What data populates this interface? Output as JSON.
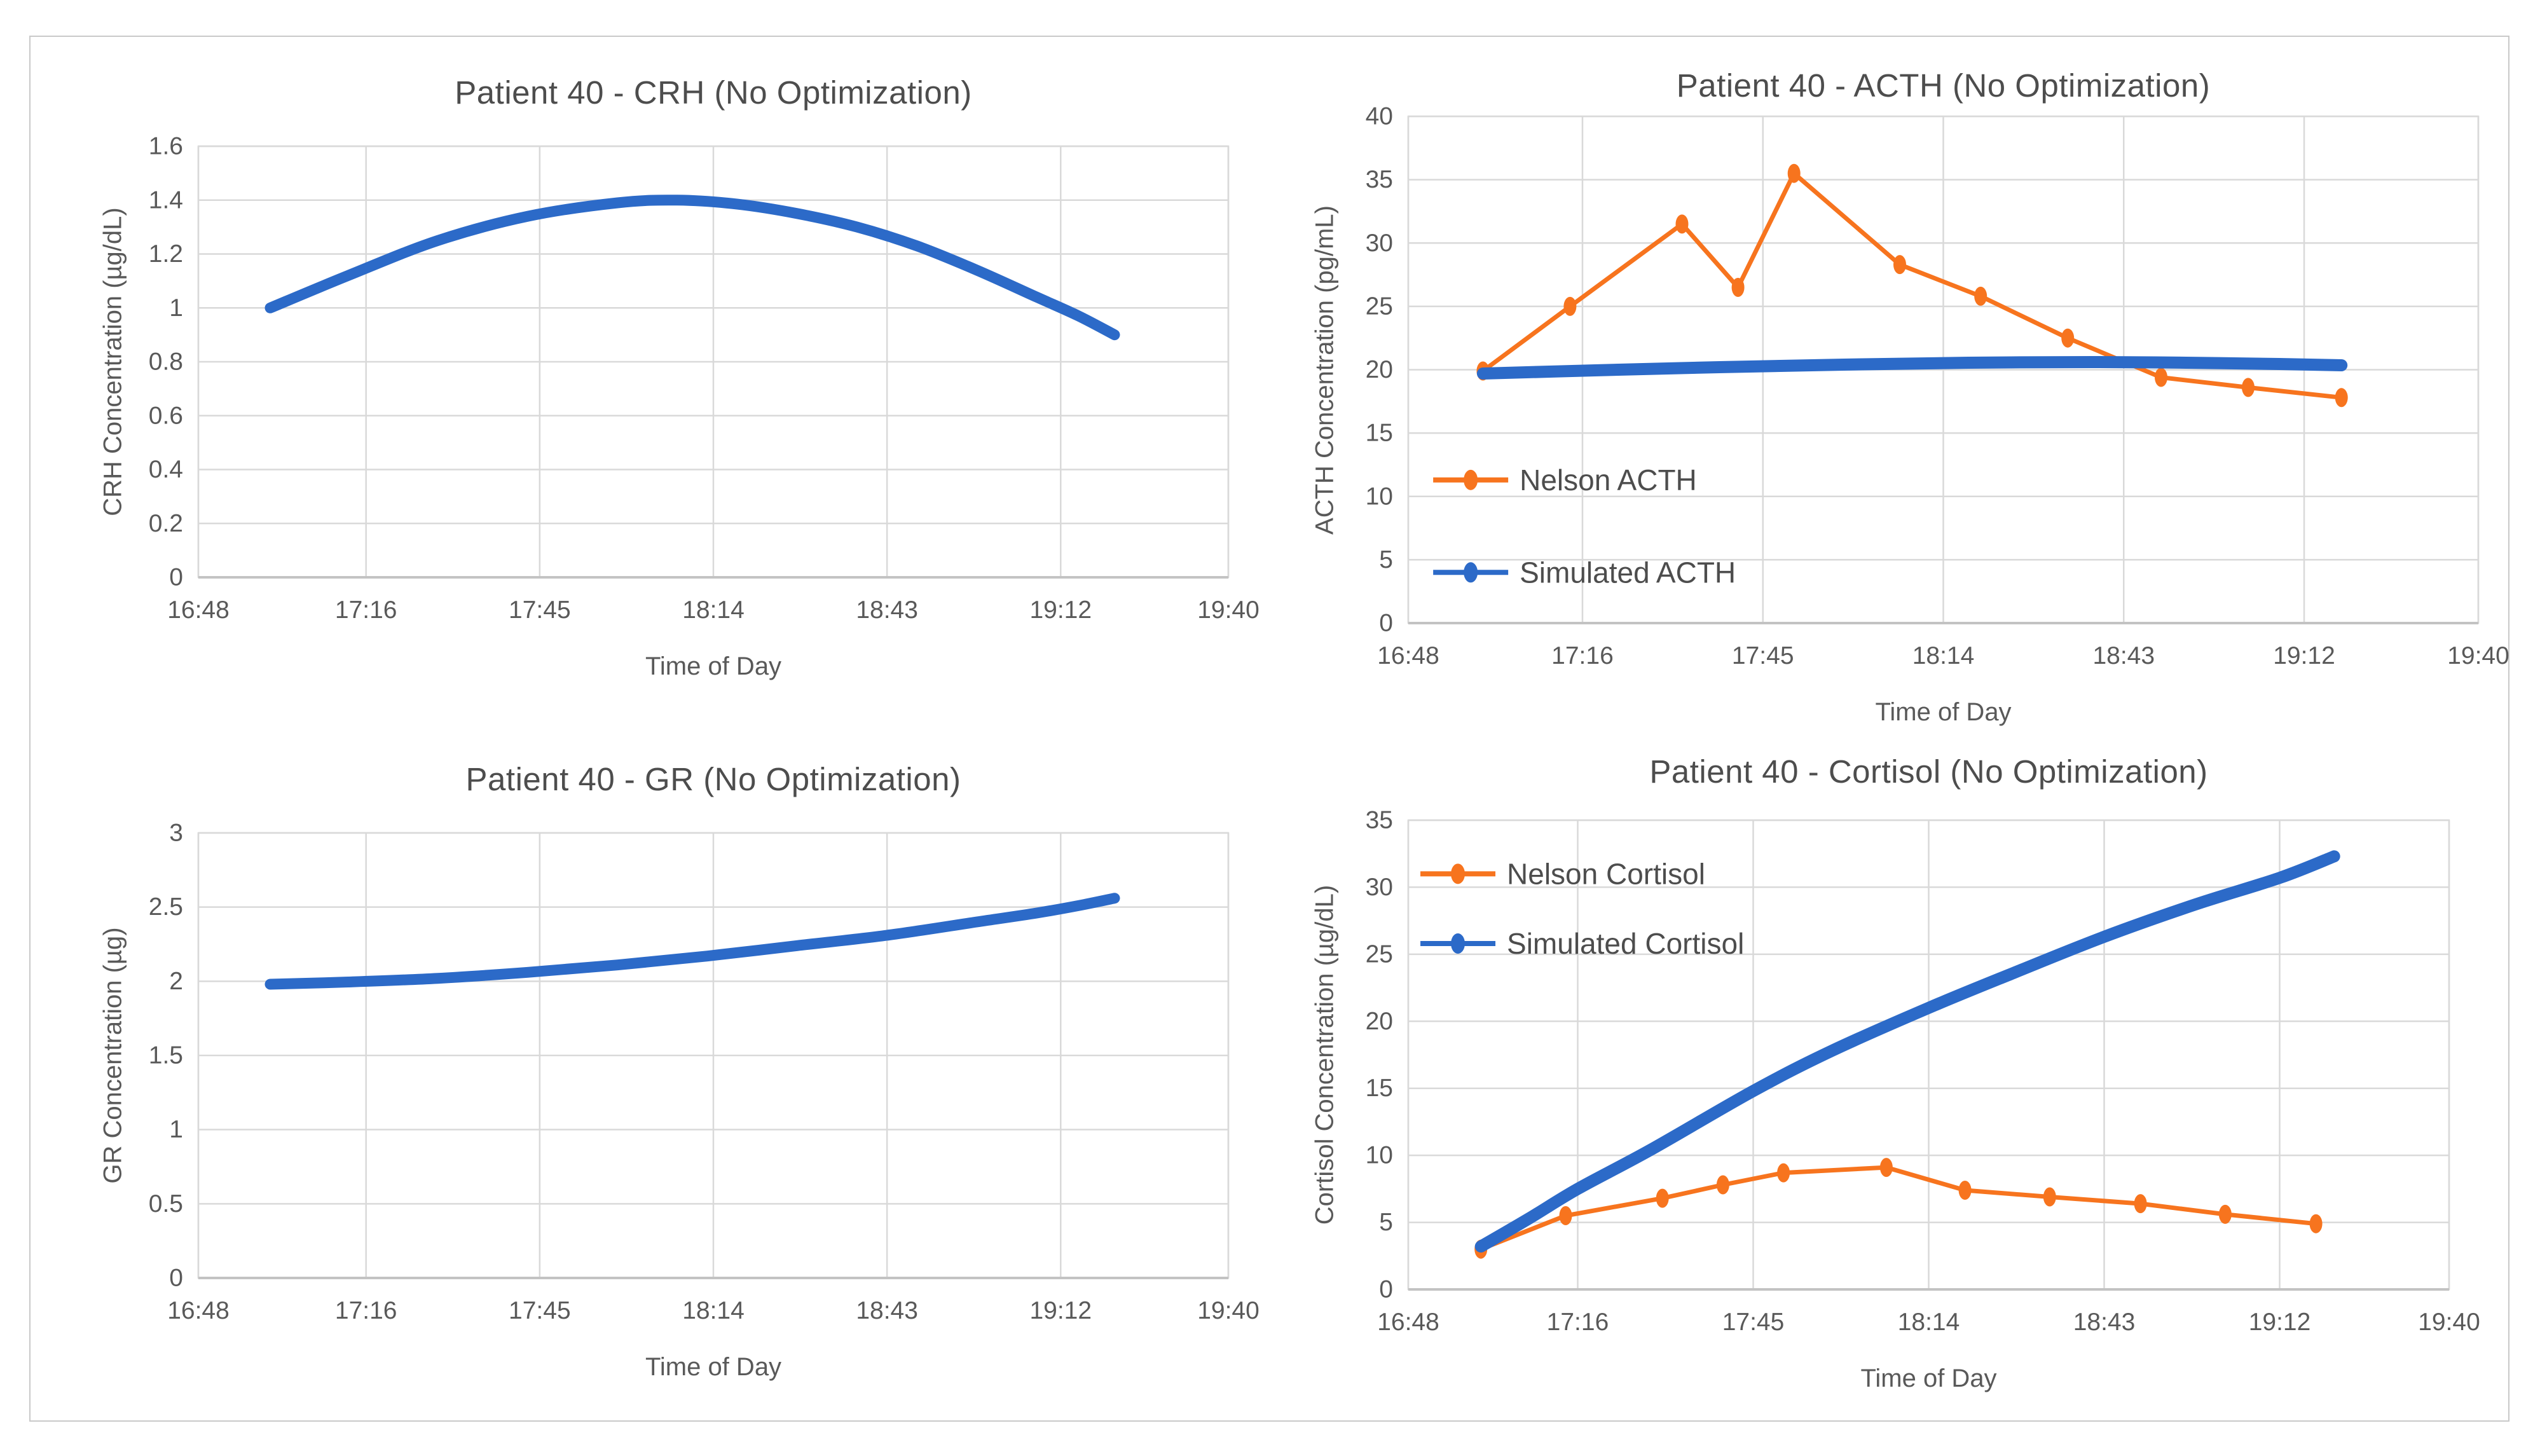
{
  "page": {
    "background": "#ffffff",
    "border_color": "#c9c9c9"
  },
  "colors": {
    "blue": "#2C6AC8",
    "orange": "#F7741E",
    "grid": "#D9D9D9",
    "plot_border": "#D9D9D9",
    "axis_line": "#C3C3C3",
    "tick_text": "#595959",
    "title_text": "#4D4D4D"
  },
  "chart_data": [
    {
      "id": "crh",
      "type": "line",
      "title": "Patient 40 - CRH (No Optimization)",
      "xlabel": "Time of Day",
      "ylabel": "CRH Concentration (µg/dL)",
      "ylim": [
        0,
        1.6
      ],
      "y_tick_values": [
        0,
        0.2,
        0.4,
        0.6,
        0.8,
        1,
        1.2,
        1.4,
        1.6
      ],
      "y_tick_labels": [
        "0",
        "0.2",
        "0.4",
        "0.6",
        "0.8",
        "1",
        "1.2",
        "1.4",
        "1.6"
      ],
      "x_tick_labels": [
        "16:48",
        "17:16",
        "17:45",
        "18:14",
        "18:43",
        "19:12",
        "19:40"
      ],
      "x_tick_minutes": [
        0,
        28,
        57,
        86,
        115,
        144,
        172
      ],
      "x_domain_minutes": [
        0,
        172
      ],
      "grid": true,
      "legend": null,
      "series": [
        {
          "color": "blue",
          "smooth": true,
          "markers": false,
          "stroke_width": 17,
          "points": [
            [
              12,
              1.0
            ],
            [
              25,
              1.12
            ],
            [
              40,
              1.25
            ],
            [
              55,
              1.34
            ],
            [
              70,
              1.39
            ],
            [
              80,
              1.4
            ],
            [
              90,
              1.385
            ],
            [
              100,
              1.35
            ],
            [
              110,
              1.3
            ],
            [
              120,
              1.23
            ],
            [
              130,
              1.14
            ],
            [
              140,
              1.04
            ],
            [
              147,
              0.97
            ],
            [
              153,
              0.9
            ]
          ]
        }
      ]
    },
    {
      "id": "acth",
      "type": "line",
      "title": "Patient 40 - ACTH (No Optimization)",
      "xlabel": "Time of Day",
      "ylabel": "ACTH Concentration (pg/mL)",
      "ylim": [
        0,
        40
      ],
      "y_tick_values": [
        0,
        5,
        10,
        15,
        20,
        25,
        30,
        35,
        40
      ],
      "y_tick_labels": [
        "0",
        "5",
        "10",
        "15",
        "20",
        "25",
        "30",
        "35",
        "40"
      ],
      "x_tick_labels": [
        "16:48",
        "17:16",
        "17:45",
        "18:14",
        "18:43",
        "19:12",
        "19:40"
      ],
      "x_tick_minutes": [
        0,
        28,
        57,
        86,
        115,
        144,
        172
      ],
      "x_domain_minutes": [
        0,
        172
      ],
      "grid": true,
      "legend": {
        "position": "inside-left",
        "items": [
          {
            "label": "Nelson ACTH",
            "color": "orange"
          },
          {
            "label": "Simulated ACTH",
            "color": "blue"
          }
        ]
      },
      "series": [
        {
          "name": "Nelson ACTH",
          "color": "orange",
          "smooth": false,
          "markers": true,
          "stroke_width": 7,
          "points": [
            [
              12,
              19.9
            ],
            [
              26,
              25.0
            ],
            [
              44,
              31.5
            ],
            [
              53,
              26.5
            ],
            [
              62,
              35.5
            ],
            [
              79,
              28.3
            ],
            [
              92,
              25.8
            ],
            [
              106,
              22.5
            ],
            [
              121,
              19.4
            ],
            [
              135,
              18.6
            ],
            [
              150,
              17.8
            ]
          ]
        },
        {
          "name": "Simulated ACTH",
          "color": "blue",
          "smooth": true,
          "markers": false,
          "stroke_width": 19,
          "points": [
            [
              12,
              19.7
            ],
            [
              30,
              19.95
            ],
            [
              50,
              20.2
            ],
            [
              70,
              20.4
            ],
            [
              90,
              20.55
            ],
            [
              110,
              20.6
            ],
            [
              125,
              20.55
            ],
            [
              140,
              20.45
            ],
            [
              150,
              20.35
            ]
          ]
        }
      ]
    },
    {
      "id": "gr",
      "type": "line",
      "title": "Patient 40 - GR (No Optimization)",
      "xlabel": "Time of Day",
      "ylabel": "GR Concentration (µg)",
      "ylim": [
        0,
        3
      ],
      "y_tick_values": [
        0,
        0.5,
        1,
        1.5,
        2,
        2.5,
        3
      ],
      "y_tick_labels": [
        "0",
        "0.5",
        "1",
        "1.5",
        "2",
        "2.5",
        "3"
      ],
      "x_tick_labels": [
        "16:48",
        "17:16",
        "17:45",
        "18:14",
        "18:43",
        "19:12",
        "19:40"
      ],
      "x_tick_minutes": [
        0,
        28,
        57,
        86,
        115,
        144,
        172
      ],
      "x_domain_minutes": [
        0,
        172
      ],
      "grid": true,
      "legend": null,
      "series": [
        {
          "color": "blue",
          "smooth": true,
          "markers": false,
          "stroke_width": 17,
          "points": [
            [
              12,
              1.98
            ],
            [
              25,
              1.995
            ],
            [
              40,
              2.02
            ],
            [
              55,
              2.06
            ],
            [
              70,
              2.11
            ],
            [
              85,
              2.17
            ],
            [
              100,
              2.24
            ],
            [
              115,
              2.31
            ],
            [
              130,
              2.4
            ],
            [
              140,
              2.46
            ],
            [
              147,
              2.51
            ],
            [
              153,
              2.56
            ]
          ]
        }
      ]
    },
    {
      "id": "cortisol",
      "type": "line",
      "title": "Patient 40 - Cortisol (No Optimization)",
      "xlabel": "Time of Day",
      "ylabel": "Cortisol Concentration (µg/dL)",
      "ylim": [
        0,
        35
      ],
      "y_tick_values": [
        0,
        5,
        10,
        15,
        20,
        25,
        30,
        35
      ],
      "y_tick_labels": [
        "0",
        "5",
        "10",
        "15",
        "20",
        "25",
        "30",
        "35"
      ],
      "x_tick_labels": [
        "16:48",
        "17:16",
        "17:45",
        "18:14",
        "18:43",
        "19:12",
        "19:40"
      ],
      "x_tick_minutes": [
        0,
        28,
        57,
        86,
        115,
        144,
        172
      ],
      "x_domain_minutes": [
        0,
        172
      ],
      "grid": true,
      "legend": {
        "position": "inside-left",
        "items": [
          {
            "label": "Nelson Cortisol",
            "color": "orange"
          },
          {
            "label": "Simulated Cortisol",
            "color": "blue"
          }
        ]
      },
      "series": [
        {
          "name": "Nelson Cortisol",
          "color": "orange",
          "smooth": false,
          "markers": true,
          "stroke_width": 7,
          "points": [
            [
              12,
              3.0
            ],
            [
              26,
              5.5
            ],
            [
              42,
              6.8
            ],
            [
              52,
              7.8
            ],
            [
              62,
              8.7
            ],
            [
              79,
              9.1
            ],
            [
              92,
              7.4
            ],
            [
              106,
              6.9
            ],
            [
              121,
              6.4
            ],
            [
              135,
              5.6
            ],
            [
              150,
              4.9
            ]
          ]
        },
        {
          "name": "Simulated Cortisol",
          "color": "blue",
          "smooth": true,
          "markers": false,
          "stroke_width": 19,
          "points": [
            [
              12,
              3.2
            ],
            [
              20,
              5.3
            ],
            [
              28,
              7.5
            ],
            [
              40,
              10.4
            ],
            [
              57,
              14.8
            ],
            [
              70,
              17.8
            ],
            [
              86,
              21.0
            ],
            [
              100,
              23.6
            ],
            [
              115,
              26.3
            ],
            [
              130,
              28.7
            ],
            [
              144,
              30.7
            ],
            [
              153,
              32.3
            ]
          ]
        }
      ]
    }
  ]
}
